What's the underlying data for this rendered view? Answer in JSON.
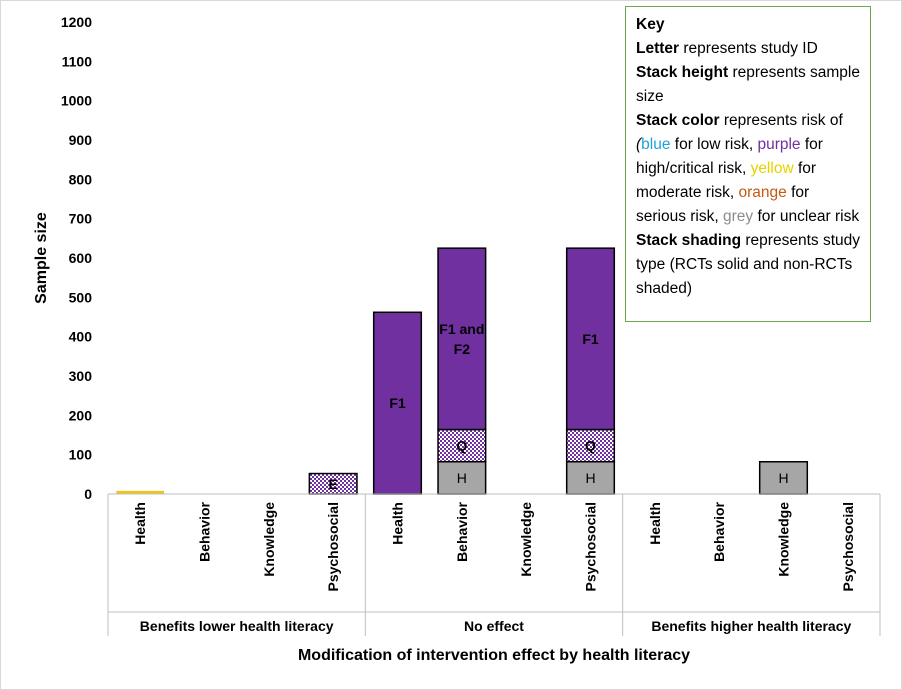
{
  "chart_data": {
    "type": "bar",
    "stacked": true,
    "ylabel": "Sample size",
    "xlabel": "Modification of intervention effect by health literacy",
    "ylim": [
      0,
      1200
    ],
    "yticks": [
      0,
      100,
      200,
      300,
      400,
      500,
      600,
      700,
      800,
      900,
      1000,
      1100,
      1200
    ],
    "grid": false,
    "groups": [
      {
        "label": "Benefits lower health literacy",
        "categories": [
          {
            "label": "Health",
            "stacks": [
              {
                "study": "",
                "value": 8,
                "risk": "moderate",
                "design": "RCT"
              }
            ]
          },
          {
            "label": "Behavior",
            "stacks": []
          },
          {
            "label": "Knowledge",
            "stacks": []
          },
          {
            "label": "Psychosocial",
            "stacks": [
              {
                "study": "E",
                "value": 52,
                "risk": "high/critical",
                "design": "non-RCT"
              }
            ]
          }
        ]
      },
      {
        "label": "No effect",
        "categories": [
          {
            "label": "Health",
            "stacks": [
              {
                "study": "F1",
                "value": 462,
                "risk": "high/critical",
                "design": "RCT"
              }
            ]
          },
          {
            "label": "Behavior",
            "stacks": [
              {
                "study": "H",
                "value": 82,
                "risk": "unclear",
                "design": "RCT"
              },
              {
                "study": "Q",
                "value": 82,
                "risk": "high/critical",
                "design": "non-RCT"
              },
              {
                "study": "F1 and F2",
                "value": 461,
                "risk": "high/critical",
                "design": "RCT"
              }
            ]
          },
          {
            "label": "Knowledge",
            "stacks": []
          },
          {
            "label": "Psychosocial",
            "stacks": [
              {
                "study": "H",
                "value": 82,
                "risk": "unclear",
                "design": "RCT"
              },
              {
                "study": "Q",
                "value": 82,
                "risk": "high/critical",
                "design": "non-RCT"
              },
              {
                "study": "F1",
                "value": 461,
                "risk": "high/critical",
                "design": "RCT"
              }
            ]
          }
        ]
      },
      {
        "label": "Benefits higher health literacy",
        "categories": [
          {
            "label": "Health",
            "stacks": []
          },
          {
            "label": "Behavior",
            "stacks": []
          },
          {
            "label": "Knowledge",
            "stacks": [
              {
                "study": "H",
                "value": 82,
                "risk": "unclear",
                "design": "RCT"
              }
            ]
          },
          {
            "label": "Psychosocial",
            "stacks": []
          }
        ]
      }
    ],
    "colors": {
      "high/critical": "#7030a0",
      "unclear": "#a6a6a6",
      "moderate": "#f0c419",
      "low": "#1fa2d8",
      "serious": "#c55a11"
    }
  },
  "key": {
    "title": "Key",
    "letter_bold": "Letter",
    "letter_text": " represents study ID",
    "height_bold": "Stack height",
    "height_text": " represents sample size",
    "color_bold": "Stack color",
    "color_text": " represents risk of ",
    "paren_open": "(",
    "blue": "blue",
    "low_text": " for low risk, ",
    "purple": "purple",
    "high_text": " for high/critical risk, ",
    "yellow": "yellow",
    "moderate_text": " for moderate risk, ",
    "orange": "orange",
    "serious_text": " for serious risk, ",
    "grey": "grey",
    "unclear_text": " for unclear risk",
    "shading_bold": "Stack shading",
    "shading_text": " represents study type (RCTs solid and non-RCTs shaded)"
  }
}
